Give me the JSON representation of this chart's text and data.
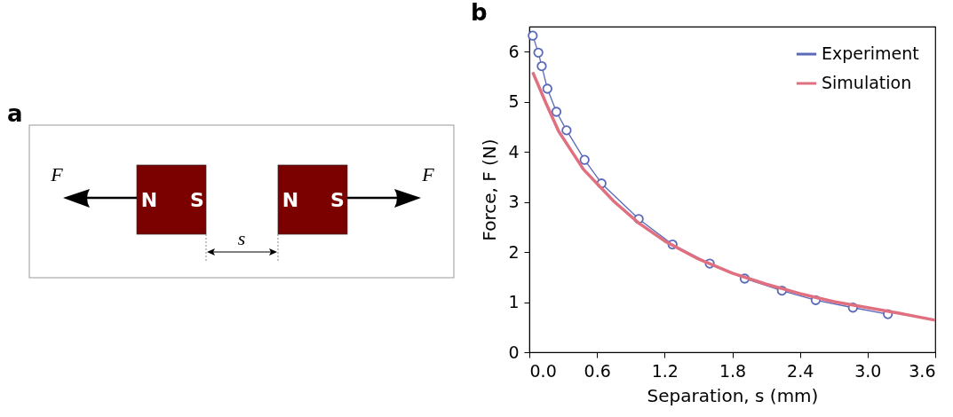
{
  "chart_data": [
    {
      "type": "other",
      "title": "a",
      "annotations": [
        "F",
        "N",
        "S",
        "N",
        "S",
        "F",
        "s"
      ]
    },
    {
      "type": "line",
      "title": "b",
      "xlabel": "Separation, s (mm)",
      "ylabel": "Force, F (N)",
      "xlim": [
        0,
        3.6
      ],
      "xticks": [
        {
          "value": 0,
          "label": "0.0"
        },
        0.6,
        1.2,
        1.8,
        2.4,
        {
          "value": 3,
          "label": "3.0"
        },
        3.6
      ],
      "ylim": [
        0,
        6.5
      ],
      "yticks": [
        0,
        1,
        2,
        3,
        4,
        5,
        6
      ],
      "grid": false,
      "legend": "top right",
      "series": [
        {
          "name": "Experiment",
          "color": "#5a6ab8",
          "marker": "circle",
          "x": [
            0.03,
            0.08,
            0.11,
            0.16,
            0.24,
            0.33,
            0.49,
            0.64,
            0.97,
            1.27,
            1.6,
            1.91,
            2.24,
            2.54,
            2.87,
            3.18
          ],
          "values": [
            6.32,
            5.98,
            5.71,
            5.26,
            4.8,
            4.43,
            3.84,
            3.37,
            2.66,
            2.15,
            1.77,
            1.47,
            1.23,
            1.04,
            0.89,
            0.76
          ]
        },
        {
          "name": "Simulation",
          "color": "#e07080",
          "marker": "none",
          "x": [
            0.03,
            0.15,
            0.26,
            0.48,
            0.75,
            0.97,
            1.2,
            1.5,
            1.8,
            2.1,
            2.4,
            2.7,
            3.0,
            3.3,
            3.6
          ],
          "values": [
            5.59,
            4.96,
            4.41,
            3.65,
            3.01,
            2.58,
            2.22,
            1.86,
            1.58,
            1.36,
            1.17,
            1.01,
            0.89,
            0.77,
            0.64
          ]
        }
      ]
    }
  ]
}
